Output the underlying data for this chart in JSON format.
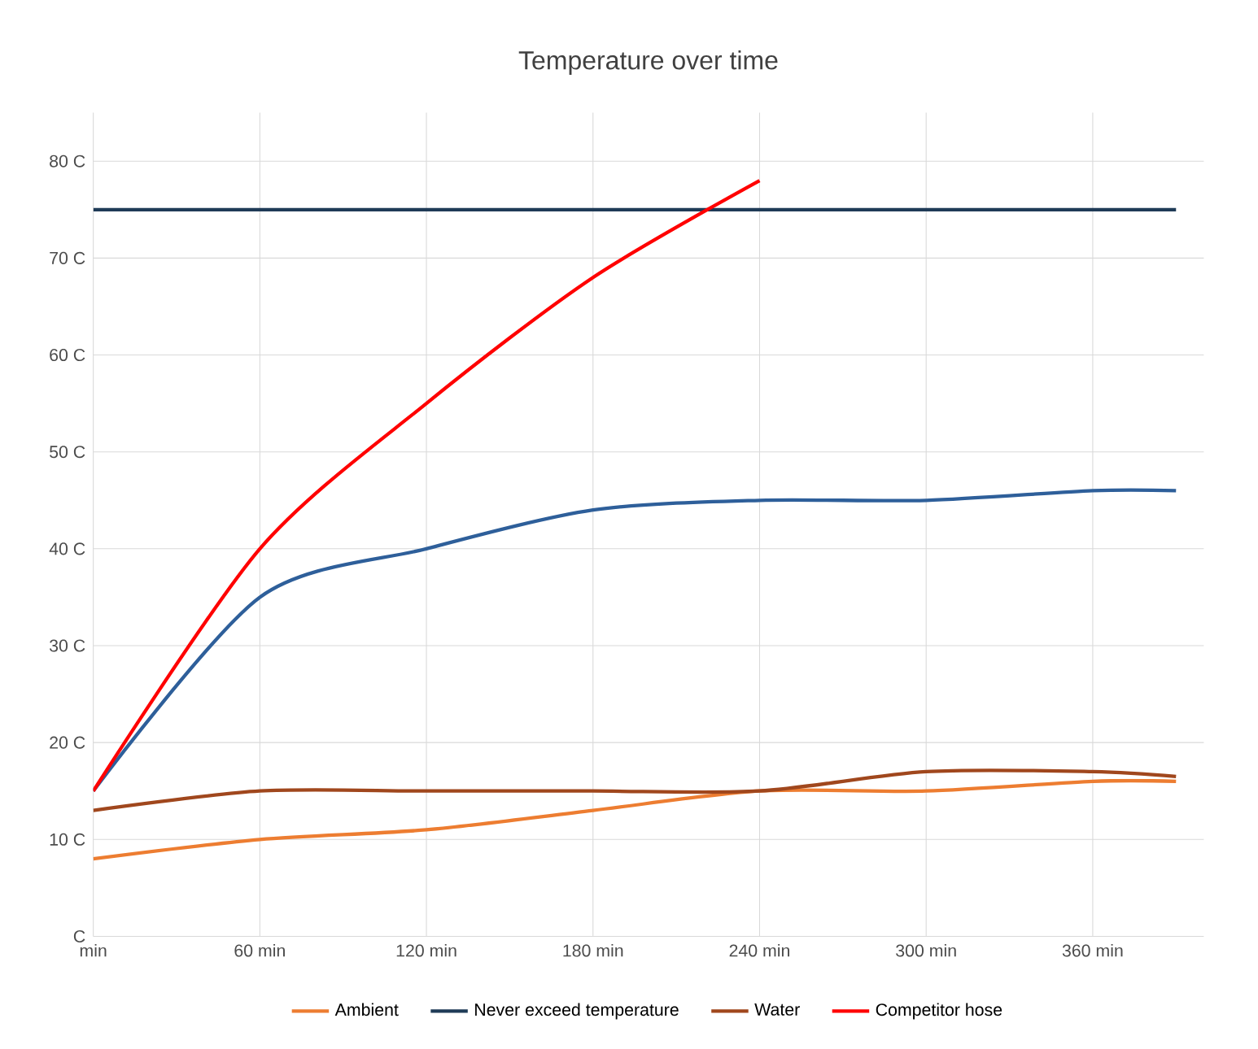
{
  "chart_data": {
    "type": "line",
    "title": "Temperature over time",
    "x": [
      0,
      60,
      120,
      180,
      240,
      300,
      360,
      390
    ],
    "series": [
      {
        "color": "#2e5f9a",
        "values": [
          15,
          35,
          40,
          44,
          45,
          45,
          46,
          46
        ]
      },
      {
        "name": "Ambient",
        "color": "#ed7d31",
        "values": [
          8,
          10,
          11,
          13,
          15,
          15,
          16,
          16
        ]
      },
      {
        "name": "Never exceed temperature",
        "color": "#1f3b57",
        "x": [
          0,
          390
        ],
        "values": [
          75,
          75
        ]
      },
      {
        "name": "Water",
        "color": "#a0471d",
        "values": [
          13,
          15,
          15,
          15,
          15,
          17,
          17,
          16.5
        ]
      },
      {
        "name": "Competitor hose",
        "color": "#ff0000",
        "x": [
          0,
          60,
          120,
          180,
          240
        ],
        "values": [
          15,
          40,
          55,
          68,
          78
        ]
      }
    ],
    "xlim": [
      0,
      400
    ],
    "xticks": [
      {
        "value": 0,
        "label": "min"
      },
      {
        "value": 60,
        "label": "60 min"
      },
      {
        "value": 120,
        "label": "120 min"
      },
      {
        "value": 180,
        "label": "180 min"
      },
      {
        "value": 240,
        "label": "240 min"
      },
      {
        "value": 300,
        "label": "300 min"
      },
      {
        "value": 360,
        "label": "360 min"
      }
    ],
    "ylim": [
      0,
      85
    ],
    "yticks": [
      {
        "value": 0,
        "label": "C"
      },
      {
        "value": 10,
        "label": "10 C"
      },
      {
        "value": 20,
        "label": "20 C"
      },
      {
        "value": 30,
        "label": "30 C"
      },
      {
        "value": 40,
        "label": "40 C"
      },
      {
        "value": 50,
        "label": "50 C"
      },
      {
        "value": 60,
        "label": "60 C"
      },
      {
        "value": 70,
        "label": "70 C"
      },
      {
        "value": 80,
        "label": "80 C"
      }
    ],
    "grid": true,
    "legend": "bottom",
    "marker": "none",
    "line_style": "solid"
  }
}
